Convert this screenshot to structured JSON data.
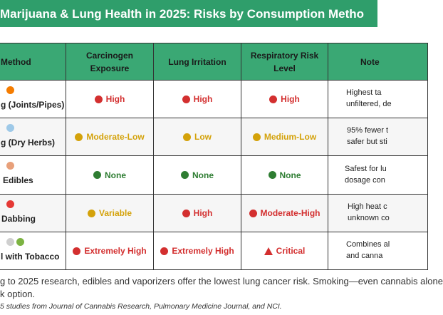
{
  "header": {
    "title": "Marijuana & Lung Health in 2025: Risks by Consumption Metho"
  },
  "table": {
    "columns": [
      "Method",
      "Carcinogen Exposure",
      "Lung Irritation",
      "Respiratory Risk Level",
      "Note"
    ],
    "rows": [
      {
        "method": "g (Joints/Pipes)",
        "cells": [
          {
            "text": "High",
            "color": "#d32f2f"
          },
          {
            "text": "High",
            "color": "#d32f2f"
          },
          {
            "text": "High",
            "color": "#d32f2f"
          }
        ],
        "notes": [
          "Highest ta",
          "unfiltered, de"
        ]
      },
      {
        "method": "g (Dry Herbs)",
        "cells": [
          {
            "text": "Moderate-Low",
            "color": "#d4a20a"
          },
          {
            "text": "Low",
            "color": "#d4a20a"
          },
          {
            "text": "Medium-Low",
            "color": "#d4a20a"
          }
        ],
        "notes": [
          "95% fewer t",
          "safer but sti"
        ]
      },
      {
        "method": "Edibles",
        "cells": [
          {
            "text": "None",
            "color": "#2e7d32"
          },
          {
            "text": "None",
            "color": "#2e7d32"
          },
          {
            "text": "None",
            "color": "#2e7d32"
          }
        ],
        "notes": [
          "Safest for lu",
          "dosage con"
        ]
      },
      {
        "method": "Dabbing",
        "cells": [
          {
            "text": "Variable",
            "color": "#d4a20a"
          },
          {
            "text": "High",
            "color": "#d32f2f"
          },
          {
            "text": "Moderate-High",
            "color": "#d32f2f"
          }
        ],
        "notes": [
          "High heat c",
          "unknown co"
        ]
      },
      {
        "method": "l with Tobacco",
        "cells": [
          {
            "text": "Extremely High",
            "color": "#d32f2f"
          },
          {
            "text": "Extremely High",
            "color": "#d32f2f"
          },
          {
            "text": "Critical",
            "color": "#d32f2f"
          }
        ],
        "notes": [
          "Combines al",
          "and canna"
        ]
      }
    ]
  },
  "footer": {
    "lines": [
      "g to 2025 research, edibles and vaporizers offer the lowest lung cancer risk. Smoking—even cannabis alone",
      "k option."
    ],
    "source": "5 studies from Journal of Cannabis Research, Pulmonary Medicine Journal, and NCI."
  }
}
